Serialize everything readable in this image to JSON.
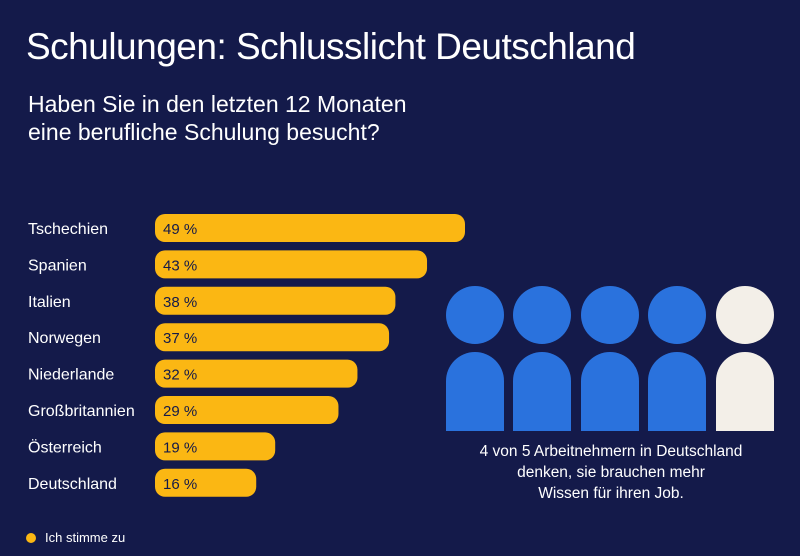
{
  "title": "Schulungen: Schlusslicht Deutschland",
  "subtitle_line1": "Haben Sie in den letzten 12 Monaten",
  "subtitle_line2": "eine berufliche Schulung besucht?",
  "chart_data": {
    "type": "bar",
    "orientation": "horizontal",
    "categories": [
      "Tschechien",
      "Spanien",
      "Italien",
      "Norwegen",
      "Niederlande",
      "Großbritannien",
      "Österreich",
      "Deutschland"
    ],
    "series": [
      {
        "name": "Ich stimme zu",
        "values": [
          49,
          43,
          38,
          37,
          32,
          29,
          19,
          16
        ],
        "color": "#fbb713"
      }
    ],
    "value_labels": [
      "49 %",
      "43 %",
      "38 %",
      "37 %",
      "32 %",
      "29 %",
      "19 %",
      "16 %"
    ],
    "unit": "%",
    "grid": false,
    "legend_position": "bottom-left"
  },
  "people_graphic": {
    "total": 5,
    "highlighted": 4,
    "highlight_color": "#2a72dd",
    "other_color": "#f3efe8"
  },
  "caption_lines": [
    "4 von 5 Arbeitnehmern in Deutschland",
    "denken, sie brauchen mehr",
    "Wissen für ihren Job."
  ],
  "legend": {
    "label": "Ich stimme zu",
    "color": "#fbb713"
  },
  "colors": {
    "background": "#141a4a",
    "bar": "#fbb713",
    "text": "#ffffff",
    "bar_label_text": "#141a4a"
  }
}
